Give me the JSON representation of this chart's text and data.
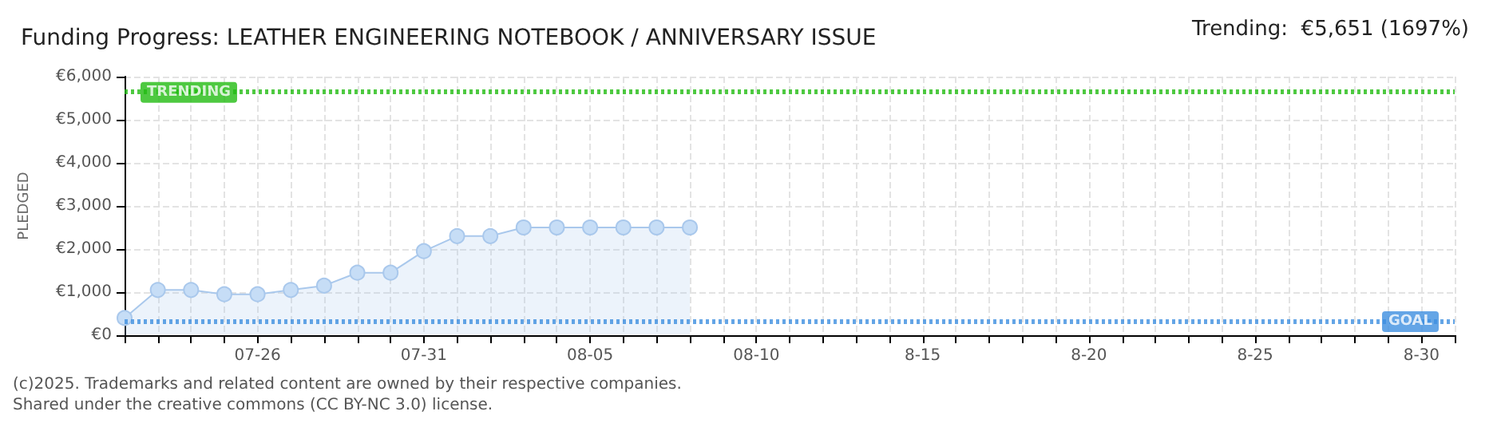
{
  "chart_data": {
    "type": "area",
    "title": "Funding Progress: LEATHER ENGINEERING NOTEBOOK / ANNIVERSARY ISSUE",
    "ylabel": "PLEDGED",
    "categories": [
      null,
      null,
      null,
      null,
      "07-26",
      null,
      null,
      null,
      null,
      "07-31",
      null,
      null,
      null,
      null,
      "08-05",
      null,
      null,
      null,
      null,
      "08-10",
      null,
      null,
      null,
      null,
      "8-15",
      null,
      null,
      null,
      null,
      "8-20",
      null,
      null,
      null,
      null,
      "8-25",
      null,
      null,
      null,
      null,
      "8-30",
      null
    ],
    "series": [
      {
        "color": "#a9c8ec",
        "values": [
          400,
          1050,
          1050,
          950,
          950,
          1050,
          1150,
          1450,
          1450,
          1950,
          2300,
          2300,
          2500,
          2500,
          2500,
          2500,
          2500,
          2500,
          null,
          null,
          null,
          null,
          null,
          null,
          null,
          null,
          null,
          null,
          null,
          null,
          null,
          null,
          null,
          null,
          null,
          null,
          null,
          null,
          null,
          null,
          null
        ]
      }
    ],
    "ylim": [
      0,
      6000
    ],
    "yticks": [
      {
        "value": 0,
        "label": "€0"
      },
      {
        "value": 1000,
        "label": "€1,000"
      },
      {
        "value": 2000,
        "label": "€2,000"
      },
      {
        "value": 3000,
        "label": "€3,000"
      },
      {
        "value": 4000,
        "label": "€4,000"
      },
      {
        "value": 5000,
        "label": "€5,000"
      },
      {
        "value": 6000,
        "label": "€6,000"
      }
    ],
    "grid": true,
    "marker": "circle",
    "ref_lines": [
      {
        "axis": "y",
        "value": 5651,
        "label": "TRENDING",
        "color": "#22bb11",
        "line_style": "dotted"
      },
      {
        "axis": "y",
        "value": 333,
        "label": "GOAL",
        "color": "#3d8ee0",
        "line_style": "dotted"
      }
    ],
    "annotations": [
      "Trending:  €5,651 (1697%)",
      "(c)2025. Trademarks and related content are owned by their respective companies.",
      "Shared under the creative commons (CC BY-NC 3.0) license."
    ]
  }
}
